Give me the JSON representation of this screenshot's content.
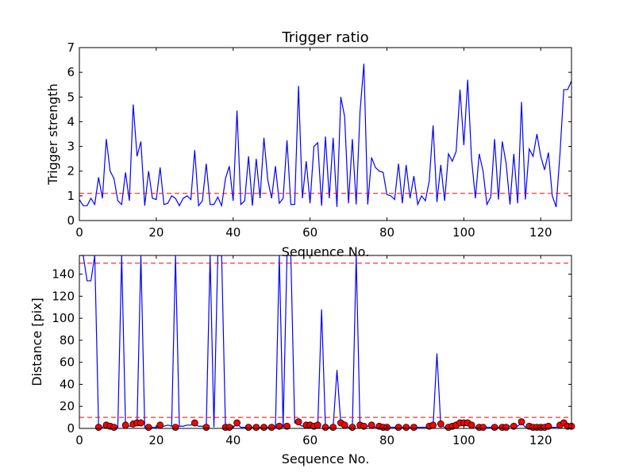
{
  "chart_data": [
    {
      "type": "line",
      "title": "Trigger ratio",
      "xlabel": "Sequence No.",
      "ylabel": "Trigger strength",
      "xlim": [
        0,
        128
      ],
      "ylim": [
        0,
        7
      ],
      "xticks": [
        0,
        20,
        40,
        60,
        80,
        100,
        120
      ],
      "yticks": [
        0,
        1,
        2,
        3,
        4,
        5,
        6,
        7
      ],
      "grid": false,
      "threshold": {
        "value": 1.1,
        "color": "#ff0000",
        "style": "dashed"
      },
      "series": [
        {
          "color": "#0000ff",
          "x": [
            0,
            1,
            2,
            3,
            4,
            5,
            6,
            7,
            8,
            9,
            10,
            11,
            12,
            13,
            14,
            15,
            16,
            17,
            18,
            19,
            20,
            21,
            22,
            23,
            24,
            25,
            26,
            27,
            28,
            29,
            30,
            31,
            32,
            33,
            34,
            35,
            36,
            37,
            38,
            39,
            40,
            41,
            42,
            43,
            44,
            45,
            46,
            47,
            48,
            49,
            50,
            51,
            52,
            53,
            54,
            55,
            56,
            57,
            58,
            59,
            60,
            61,
            62,
            63,
            64,
            65,
            66,
            67,
            68,
            69,
            70,
            71,
            72,
            73,
            74,
            75,
            76,
            77,
            78,
            79,
            80,
            81,
            82,
            83,
            84,
            85,
            86,
            87,
            88,
            89,
            90,
            91,
            92,
            93,
            94,
            95,
            96,
            97,
            98,
            99,
            100,
            101,
            102,
            103,
            104,
            105,
            106,
            107,
            108,
            109,
            110,
            111,
            112,
            113,
            114,
            115,
            116,
            117,
            118,
            119,
            120,
            121,
            122,
            123,
            124,
            125,
            126,
            127,
            128
          ],
          "y": [
            0.85,
            0.6,
            0.6,
            0.9,
            0.65,
            1.75,
            0.9,
            3.3,
            2.0,
            1.7,
            0.8,
            0.65,
            1.95,
            0.8,
            4.7,
            2.6,
            3.2,
            0.6,
            2.0,
            0.9,
            0.85,
            2.15,
            0.65,
            0.7,
            1.0,
            0.9,
            0.6,
            0.9,
            1.0,
            0.85,
            2.85,
            0.6,
            0.8,
            2.3,
            0.65,
            0.65,
            0.95,
            0.6,
            1.7,
            2.2,
            0.8,
            4.45,
            0.65,
            0.8,
            2.6,
            0.6,
            2.5,
            0.9,
            3.35,
            1.65,
            0.9,
            2.2,
            0.7,
            0.9,
            3.25,
            0.65,
            0.65,
            5.45,
            0.9,
            2.4,
            0.7,
            3.0,
            3.15,
            0.6,
            3.4,
            0.9,
            3.35,
            0.55,
            5.0,
            4.2,
            0.7,
            3.3,
            0.65,
            4.4,
            6.35,
            0.65,
            2.55,
            2.15,
            2.0,
            1.95,
            1.05,
            1.0,
            0.85,
            2.3,
            0.7,
            2.25,
            0.9,
            1.8,
            0.65,
            1.0,
            0.8,
            1.6,
            3.85,
            0.75,
            2.25,
            0.8,
            2.7,
            2.4,
            2.8,
            5.3,
            3.05,
            5.7,
            2.5,
            0.9,
            2.7,
            2.0,
            0.65,
            0.95,
            3.3,
            0.85,
            3.2,
            2.3,
            0.65,
            2.7,
            0.7,
            4.8,
            0.85,
            2.9,
            2.6,
            3.5,
            2.6,
            2.05,
            2.75,
            1.0,
            0.55,
            2.7,
            5.3,
            5.3,
            5.65
          ]
        }
      ]
    },
    {
      "type": "line",
      "title": "",
      "xlabel": "Sequence No.",
      "ylabel": "Distance [pix]",
      "xlim": [
        0,
        128
      ],
      "ylim": [
        0,
        157
      ],
      "xticks": [
        0,
        20,
        40,
        60,
        80,
        100,
        120
      ],
      "yticks": [
        0,
        20,
        40,
        60,
        80,
        100,
        120,
        140
      ],
      "grid": false,
      "thresholds": [
        {
          "value": 150,
          "color": "#ff0000",
          "style": "dashed"
        },
        {
          "value": 10,
          "color": "#ff0000",
          "style": "dashed"
        }
      ],
      "series": [
        {
          "color": "#0000ff",
          "type": "line",
          "x": [
            0,
            1,
            2,
            3,
            4,
            5,
            6,
            7,
            8,
            9,
            10,
            11,
            12,
            13,
            14,
            15,
            16,
            17,
            18,
            19,
            20,
            21,
            22,
            23,
            24,
            25,
            26,
            27,
            28,
            29,
            30,
            31,
            32,
            33,
            34,
            35,
            36,
            37,
            38,
            39,
            40,
            41,
            42,
            43,
            44,
            45,
            46,
            47,
            48,
            49,
            50,
            51,
            52,
            53,
            54,
            55,
            56,
            57,
            58,
            59,
            60,
            61,
            62,
            63,
            64,
            65,
            66,
            67,
            68,
            69,
            70,
            71,
            72,
            73,
            74,
            75,
            76,
            77,
            78,
            79,
            80,
            81,
            82,
            83,
            84,
            85,
            86,
            87,
            88,
            89,
            90,
            91,
            92,
            93,
            94,
            95,
            96,
            97,
            98,
            99,
            100,
            101,
            102,
            103,
            104,
            105,
            106,
            107,
            108,
            109,
            110,
            111,
            112,
            113,
            114,
            115,
            116,
            117,
            118,
            119,
            120,
            121,
            122,
            123,
            124,
            125,
            126,
            127,
            128
          ],
          "y": [
            157,
            157,
            134,
            134,
            157,
            1,
            1,
            3,
            1,
            1,
            1,
            157,
            3,
            2,
            2,
            4,
            157,
            1,
            1,
            1,
            1,
            2,
            2,
            3,
            2,
            157,
            2,
            2,
            3,
            3,
            4,
            2,
            2,
            1,
            157,
            1,
            157,
            157,
            1,
            1,
            1,
            4,
            1,
            1,
            1,
            1,
            1,
            1,
            1,
            1,
            1,
            1,
            157,
            1,
            157,
            157,
            5,
            4,
            2,
            2,
            2,
            2,
            2,
            108,
            1,
            1,
            1,
            53,
            4,
            2,
            1,
            1,
            157,
            1,
            2,
            2,
            2,
            1,
            1,
            1,
            1,
            1,
            1,
            1,
            1,
            1,
            1,
            1,
            1,
            1,
            1,
            2,
            2,
            68,
            3,
            1,
            1,
            2,
            3,
            5,
            5,
            5,
            3,
            1,
            1,
            2,
            1,
            1,
            1,
            1,
            1,
            1,
            2,
            1,
            2,
            5,
            1,
            2,
            1,
            1,
            1,
            1,
            2,
            1,
            1,
            2,
            4,
            2,
            2
          ]
        },
        {
          "color": "#ff0000",
          "type": "scatter",
          "x": [
            5,
            7,
            8,
            9,
            12,
            14,
            15,
            16,
            18,
            21,
            25,
            30,
            33,
            38,
            39,
            41,
            44,
            46,
            48,
            50,
            52,
            54,
            57,
            59,
            60,
            61,
            62,
            64,
            66,
            68,
            69,
            71,
            73,
            74,
            76,
            78,
            79,
            80,
            83,
            85,
            87,
            91,
            92,
            94,
            96,
            97,
            98,
            99,
            100,
            101,
            102,
            104,
            105,
            108,
            110,
            111,
            113,
            115,
            117,
            118,
            119,
            120,
            121,
            122,
            125,
            126,
            127,
            128
          ],
          "y": [
            1,
            3,
            2,
            1,
            3,
            4,
            5,
            5,
            1,
            3,
            1,
            5,
            1,
            1,
            1,
            5,
            1,
            1,
            1,
            1,
            2,
            2,
            6,
            3,
            3,
            2,
            3,
            1,
            1,
            5,
            3,
            1,
            3,
            2,
            3,
            2,
            1,
            1,
            1,
            1,
            1,
            2,
            3,
            4,
            1,
            2,
            3,
            5,
            5,
            5,
            3,
            1,
            1,
            1,
            1,
            1,
            2,
            6,
            2,
            1,
            1,
            1,
            1,
            2,
            3,
            5,
            2,
            2
          ]
        }
      ]
    }
  ]
}
